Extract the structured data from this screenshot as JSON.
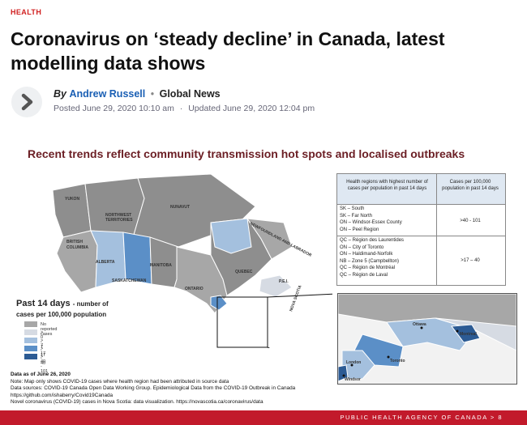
{
  "article": {
    "category": "HEALTH",
    "headline": "Coronavirus on ‘steady decline’ in Canada, latest modelling data shows",
    "by": "By",
    "author": "Andrew Russell",
    "separator": "•",
    "outlet": "Global News",
    "posted": "Posted June 29, 2020 10:10 am",
    "updated": "Updated June 29, 2020 12:04 pm",
    "date_separator": "·"
  },
  "slide": {
    "title": "Recent trends reflect community transmission hot spots and localised outbreaks",
    "map_labels": {
      "yukon": "YUKON",
      "nwt1": "NORTHWEST",
      "nwt2": "TERRITORIES",
      "nunavut": "NUNAVUT",
      "bc1": "BRITISH",
      "bc2": "COLUMBIA",
      "alberta": "ALBERTA",
      "sask": "SASKATCHEWAN",
      "manitoba": "MANITOBA",
      "ontario": "ONTARIO",
      "quebec": "QUEBEC",
      "nl": "NEWFOUNDLAND AND LABRADOR",
      "pei": "P.E.I.",
      "ns": "NOVA SCOTIA"
    },
    "table": {
      "header_regions": "Health regions with highest number of cases per population in past 14 days",
      "header_cases": "Cases per 100,000 population in past 14 days",
      "group1": [
        "SK – South",
        "SK – Far North",
        "ON – Windsor-Essex County",
        "ON – Peel Region"
      ],
      "group1_value": ">40 - 101",
      "group2": [
        "QC – Région des Laurentides",
        "ON – City of Toronto",
        "ON – Haldimand-Norfolk",
        "NB – Zone 5 (Campbellton)",
        "QC – Région de Montréal",
        "QC – Région de Laval"
      ],
      "group2_value": ">17 – 40"
    },
    "inset_labels": {
      "ottawa": "Ottawa",
      "montreal": "Montreal",
      "toronto": "Toronto",
      "london": "London",
      "windsor": "Windsor"
    },
    "legend": {
      "title": "Past 14 days",
      "subtitle_a": "- number of",
      "subtitle_b": "cases per 100,000 population",
      "items": [
        {
          "label": "No reported cases",
          "color": "#a7a7a7"
        },
        {
          "label": "> 0 - 7",
          "color": "#d6dbe3"
        },
        {
          "label": "> 7 - 17",
          "color": "#a4c0de"
        },
        {
          "label": "> 17 - 40",
          "color": "#5b8fc7"
        },
        {
          "label": "> 40 - 101",
          "color": "#2c5b94"
        }
      ]
    },
    "notes": {
      "asof": "Data as of June 26, 2020",
      "line1": "Note: Map only shows COVID-19 cases where health region had been attributed in source data",
      "line2": "Data sources: COVID-19 Canada Open Data Working Group. Epidemiological Data from the COVID-19 Outbreak in Canada",
      "line3": "https://github.com/ishaberry/Covid19Canada",
      "line4": "Novel coronavirus (COVID-19) cases in Nova Scotia: data visualization. https://novascotia.ca/coronavirus/data"
    },
    "footer": "PUBLIC HEALTH AGENCY OF CANADA  >  8"
  },
  "colors": {
    "category": "#d11f1f",
    "author_link": "#1a5fb4",
    "slide_title": "#6b1e24",
    "footer_bar": "#c21a2b"
  }
}
